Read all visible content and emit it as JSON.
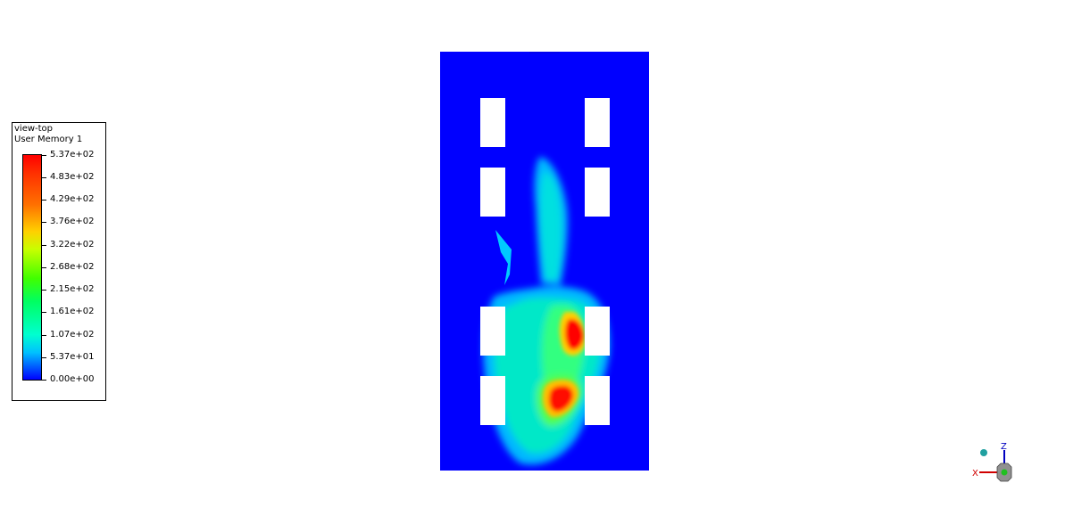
{
  "legend": {
    "title": "view-top",
    "subtitle": "User Memory 1",
    "ticks": [
      "5.37e+02",
      "4.83e+02",
      "4.29e+02",
      "3.76e+02",
      "3.22e+02",
      "2.68e+02",
      "2.15e+02",
      "1.61e+02",
      "1.07e+02",
      "5.37e+01",
      "0.00e+00"
    ],
    "colormap": [
      "#0000ff",
      "#00c0ff",
      "#00ffd0",
      "#00ff60",
      "#40ff00",
      "#c8ff00",
      "#ffd000",
      "#ff7000",
      "#ff0000"
    ]
  },
  "plot": {
    "background_color": "#0000ff",
    "obstacle_color": "#ffffff"
  },
  "triad": {
    "x_label": "X",
    "z_label": "Z",
    "x_color": "#d00000",
    "z_color": "#0000c0"
  }
}
